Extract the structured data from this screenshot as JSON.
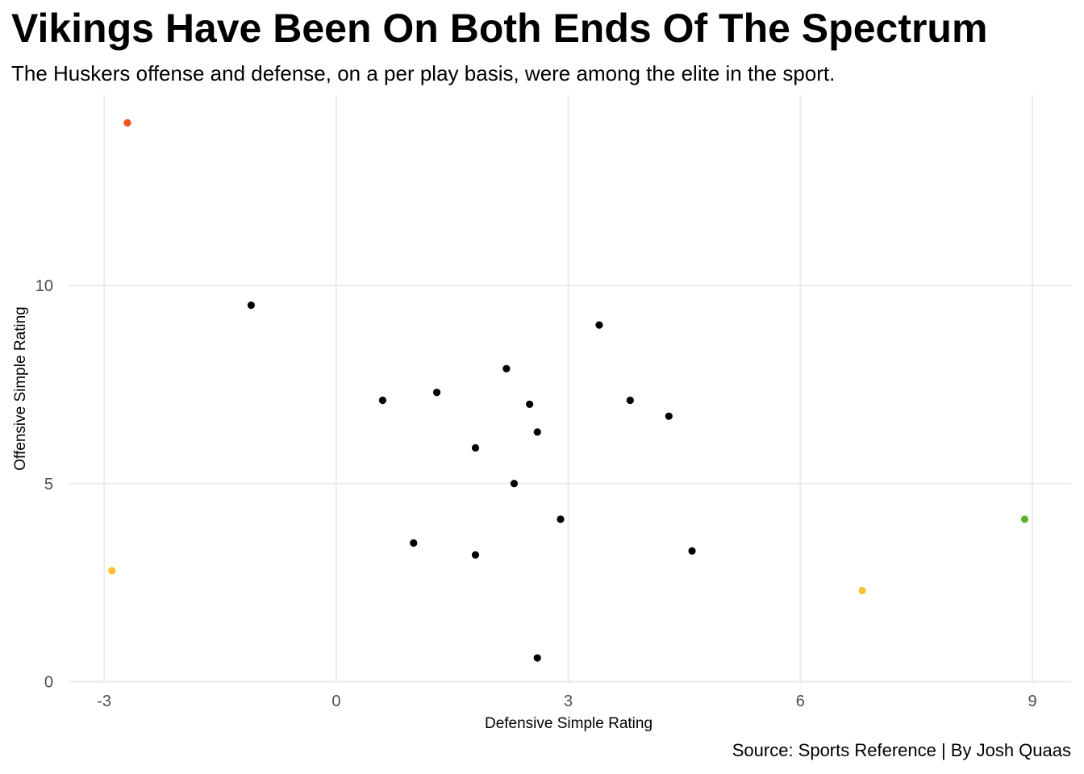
{
  "chart_data": {
    "type": "scatter",
    "title": "Vikings Have Been On Both Ends Of The Spectrum",
    "subtitle": "The Huskers offense and defense, on a per play basis, were among the elite in the sport.",
    "caption": "Source: Sports Reference | By Josh Quaas",
    "xlabel": "Defensive Simple Rating",
    "ylabel": "Offensive Simple Rating",
    "xlim": [
      -3.45,
      9.5
    ],
    "ylim": [
      -0.05,
      14.8
    ],
    "x_ticks": [
      -3,
      0,
      3,
      6,
      9
    ],
    "x_tick_labels": [
      "-3",
      "0",
      "3",
      "6",
      "9"
    ],
    "y_ticks": [
      0,
      5,
      10
    ],
    "y_tick_labels": [
      "0",
      "5",
      "10"
    ],
    "grid": true,
    "legend": "none",
    "colors": {
      "default": "#000000",
      "orange_red": "#f4511e",
      "gold": "#fbc02d",
      "green": "#5db42a",
      "grid": "#ebebeb"
    },
    "points": [
      {
        "x": -2.7,
        "y": 14.1,
        "color": "#f4511e"
      },
      {
        "x": -1.1,
        "y": 9.5,
        "color": "#000000"
      },
      {
        "x": 0.6,
        "y": 7.1,
        "color": "#000000"
      },
      {
        "x": 1.3,
        "y": 7.3,
        "color": "#000000"
      },
      {
        "x": 2.2,
        "y": 7.9,
        "color": "#000000"
      },
      {
        "x": 2.5,
        "y": 7.0,
        "color": "#000000"
      },
      {
        "x": 2.6,
        "y": 6.3,
        "color": "#000000"
      },
      {
        "x": 1.8,
        "y": 5.9,
        "color": "#000000"
      },
      {
        "x": 2.3,
        "y": 5.0,
        "color": "#000000"
      },
      {
        "x": 3.4,
        "y": 9.0,
        "color": "#000000"
      },
      {
        "x": 3.8,
        "y": 7.1,
        "color": "#000000"
      },
      {
        "x": 4.3,
        "y": 6.7,
        "color": "#000000"
      },
      {
        "x": 2.9,
        "y": 4.1,
        "color": "#000000"
      },
      {
        "x": 1.0,
        "y": 3.5,
        "color": "#000000"
      },
      {
        "x": 1.8,
        "y": 3.2,
        "color": "#000000"
      },
      {
        "x": 4.6,
        "y": 3.3,
        "color": "#000000"
      },
      {
        "x": 2.6,
        "y": 0.6,
        "color": "#000000"
      },
      {
        "x": -2.9,
        "y": 2.8,
        "color": "#fbc02d"
      },
      {
        "x": 6.8,
        "y": 2.3,
        "color": "#fbc02d"
      },
      {
        "x": 8.9,
        "y": 4.1,
        "color": "#5db42a"
      }
    ]
  }
}
